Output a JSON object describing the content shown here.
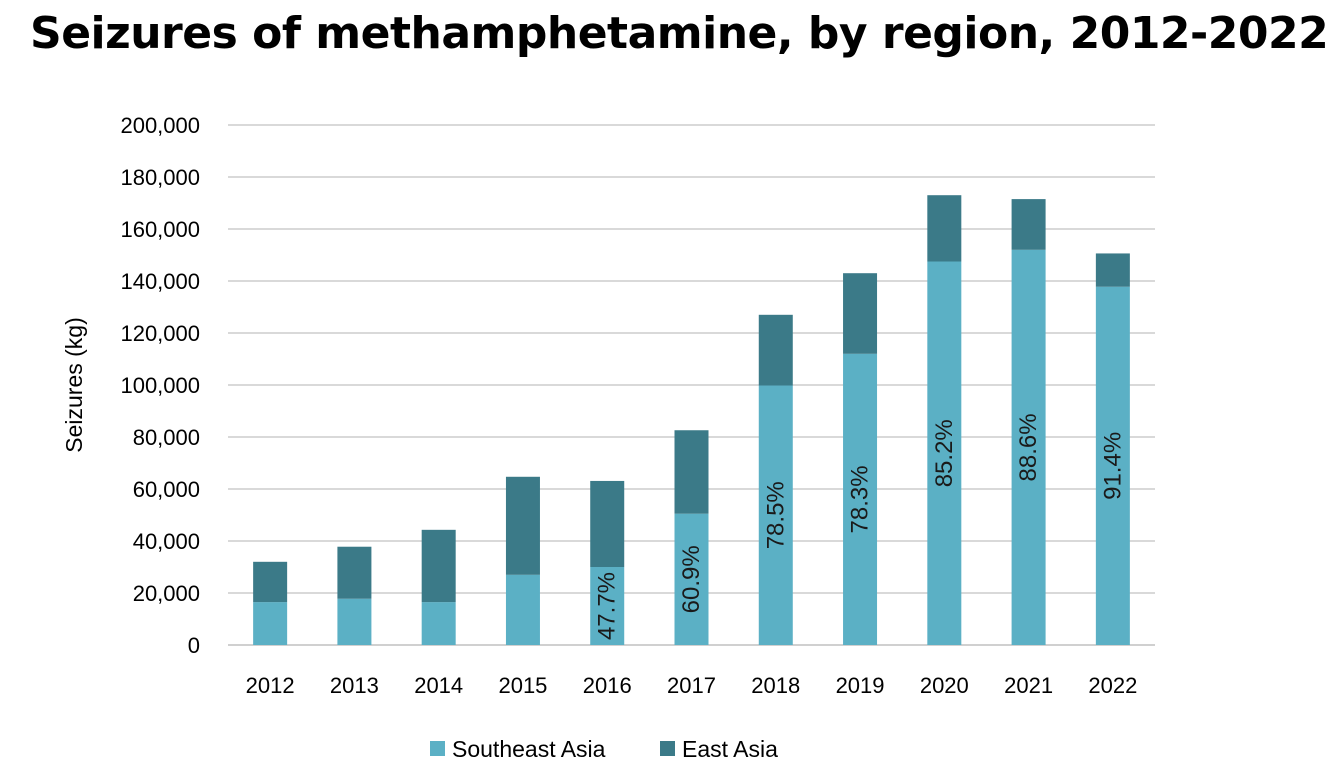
{
  "title": "Seizures of methamphetamine, by region, 2012-2022",
  "chart_data": {
    "type": "bar",
    "stacked": true,
    "categories": [
      "2012",
      "2013",
      "2014",
      "2015",
      "2016",
      "2017",
      "2018",
      "2019",
      "2020",
      "2021",
      "2022"
    ],
    "series": [
      {
        "name": "Southeast Asia",
        "color": "#5bb0c5",
        "values": [
          16500,
          17800,
          16500,
          27000,
          30000,
          50500,
          99800,
          112000,
          147500,
          152000,
          137800
        ]
      },
      {
        "name": "East Asia",
        "color": "#3b7a88",
        "values": [
          15500,
          20000,
          27800,
          37700,
          33100,
          32100,
          27200,
          31000,
          25500,
          19500,
          12800
        ]
      }
    ],
    "bar_labels": [
      "",
      "",
      "",
      "",
      "47.7%",
      "60.9%",
      "78.5%",
      "78.3%",
      "85.2%",
      "88.6%",
      "91.4%"
    ],
    "ylabel": "Seizures (kg)",
    "xlabel": "",
    "ylim": [
      0,
      200000
    ],
    "yticks": [
      0,
      20000,
      40000,
      60000,
      80000,
      100000,
      120000,
      140000,
      160000,
      180000,
      200000
    ],
    "ytick_labels": [
      "0",
      "20,000",
      "40,000",
      "60,000",
      "80,000",
      "100,000",
      "120,000",
      "140,000",
      "160,000",
      "180,000",
      "200,000"
    ],
    "grid": true,
    "legend_position": "bottom"
  }
}
